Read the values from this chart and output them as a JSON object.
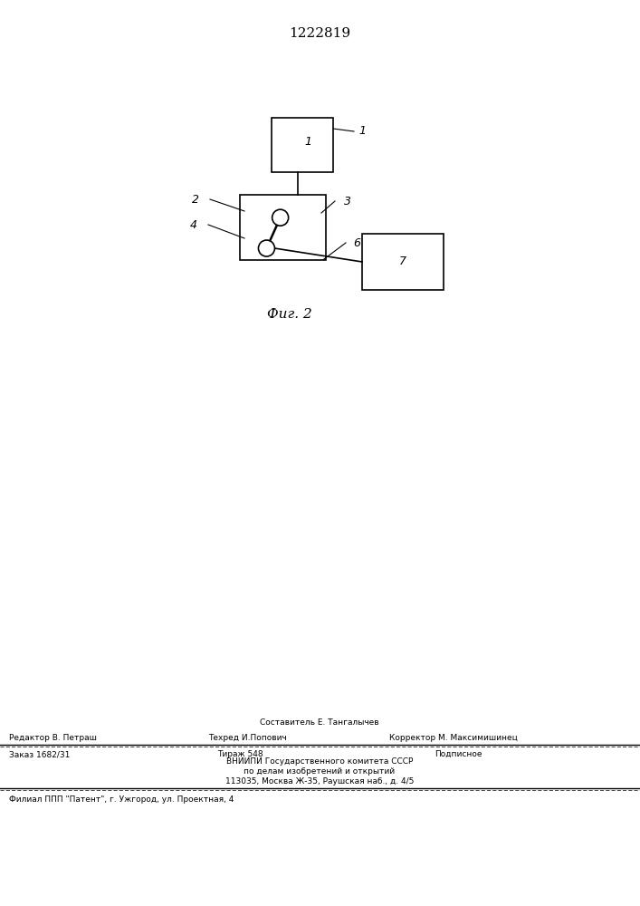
{
  "patent_number": "1222819",
  "figure_label": "Фиг. 2",
  "background_color": "#ffffff",
  "line_color": "#000000",
  "fig_width": 7.07,
  "fig_height": 10.0,
  "dpi": 100,
  "footer_texts": {
    "composer": "Составитель Е. Тангалычев",
    "editor": "Редактор В. Петраш",
    "techred": "Техред И.Попович",
    "corrector": "Корректор М. Максимишинец",
    "order": "Заказ 1682/31",
    "tirazh": "Тираж 548",
    "podpisnoe": "Подписное",
    "vnipi": "ВНИИПИ Государственного комитета СССР",
    "po_delam": "по делам изобретений и открытий",
    "address": "113035, Москва Ж-35, Раушская наб., д. 4/5",
    "filial": "Филиал ППП \"Патент\", г. Ужгород, ул. Проектная, 4"
  }
}
